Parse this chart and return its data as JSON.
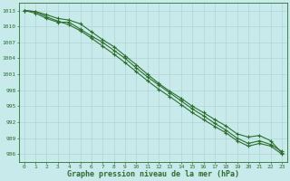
{
  "title": "Graphe pression niveau de la mer (hPa)",
  "background_color": "#c8eaea",
  "grid_color": "#b0d4d4",
  "line_color": "#2d6e2d",
  "xlim_min": -0.5,
  "xlim_max": 23.5,
  "ylim_min": 984.5,
  "ylim_max": 1014.5,
  "yticks": [
    986,
    989,
    992,
    995,
    998,
    1001,
    1004,
    1007,
    1010,
    1013
  ],
  "xticks": [
    0,
    1,
    2,
    3,
    4,
    5,
    6,
    7,
    8,
    9,
    10,
    11,
    12,
    13,
    14,
    15,
    16,
    17,
    18,
    19,
    20,
    21,
    22,
    23
  ],
  "lines": [
    [
      1013.0,
      1012.8,
      1012.2,
      1011.5,
      1011.2,
      1010.5,
      1009.0,
      1007.5,
      1006.2,
      1004.5,
      1002.8,
      1001.0,
      999.3,
      997.8,
      996.5,
      995.0,
      993.8,
      992.5,
      991.3,
      989.8,
      989.2,
      989.5,
      988.5,
      986.2
    ],
    [
      1013.0,
      1012.8,
      1011.8,
      1011.0,
      1010.3,
      1009.2,
      1007.8,
      1006.3,
      1004.8,
      1003.2,
      1001.5,
      999.8,
      998.2,
      996.8,
      995.3,
      993.8,
      992.5,
      991.2,
      990.0,
      988.5,
      987.5,
      988.0,
      987.5,
      986.0
    ],
    [
      1013.0,
      1012.5,
      1011.5,
      1010.8,
      1010.8,
      1009.5,
      1008.2,
      1007.0,
      1005.5,
      1004.0,
      1002.2,
      1000.5,
      999.0,
      997.5,
      996.0,
      994.5,
      993.2,
      991.8,
      990.5,
      989.0,
      988.0,
      988.5,
      987.8,
      986.5
    ]
  ]
}
